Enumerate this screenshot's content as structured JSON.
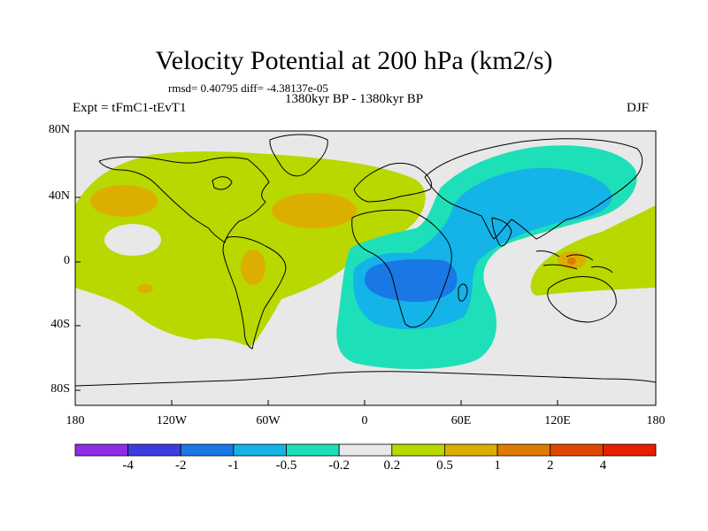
{
  "title": "Velocity Potential at 200 hPa (km2/s)",
  "stats": "rmsd= 0.40795 diff= -4.38137e-05",
  "period": "1380kyr BP - 1380kyr BP",
  "experiment": "Expt = tFmC1-tEvT1",
  "season": "DJF",
  "axes": {
    "lat_labels": [
      "80N",
      "40N",
      "0",
      "40S",
      "80S"
    ],
    "lon_labels": [
      "180",
      "120W",
      "60W",
      "0",
      "60E",
      "120E",
      "180"
    ]
  },
  "colorbar": {
    "levels": [
      "-4",
      "-2",
      "-1",
      "-0.5",
      "-0.2",
      "0.2",
      "0.5",
      "1",
      "2",
      "4"
    ],
    "colors": [
      "#8d2ee6",
      "#3c3ce0",
      "#1a78e6",
      "#14b4e8",
      "#1ee0b8",
      "#e8e8e8",
      "#b8d800",
      "#dcae00",
      "#e07a00",
      "#e04800",
      "#e81e00"
    ]
  },
  "palette": {
    "neutral": "#e8e8e8",
    "pos_weak": "#b8d800",
    "pos_mod": "#dcae00",
    "pos_strong": "#e07a00",
    "neg_weak": "#1ee0b8",
    "neg_mod": "#14b4e8",
    "neg_strong": "#1a78e6",
    "coast": "#000000"
  }
}
